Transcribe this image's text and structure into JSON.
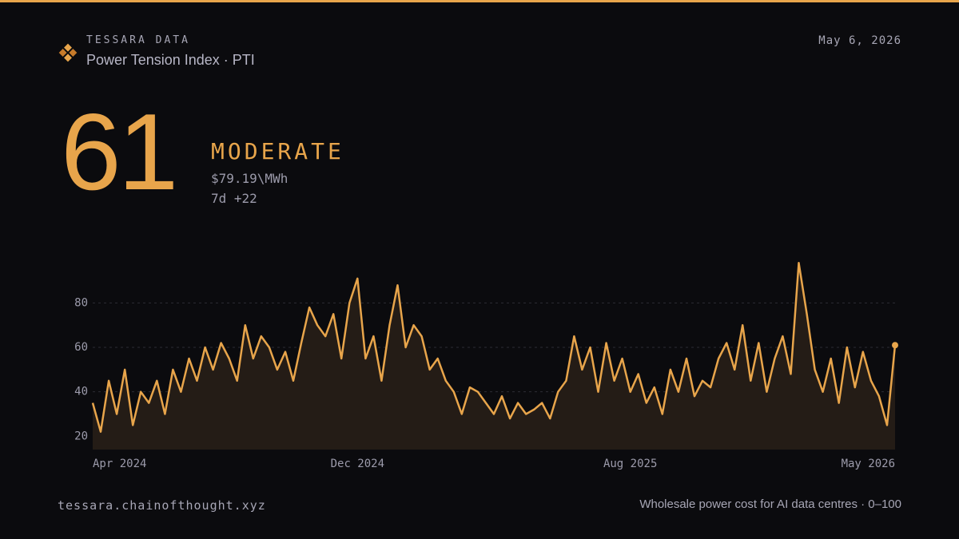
{
  "header": {
    "brand": "TESSARA DATA",
    "title": "Power Tension Index · PTI",
    "date": "May 6, 2026"
  },
  "headline": {
    "value": 61,
    "status": "MODERATE",
    "price": "$79.19\\MWh",
    "change": "7d +22"
  },
  "chart_data": {
    "type": "line",
    "color": "#e8a54b",
    "grid": true,
    "ylim": [
      14,
      101
    ],
    "yticks": [
      20,
      40,
      60,
      80
    ],
    "categories": [
      "Apr 2024",
      null,
      null,
      null,
      null,
      null,
      null,
      null,
      null,
      null,
      null,
      null,
      null,
      null,
      null,
      null,
      null,
      null,
      null,
      null,
      null,
      null,
      null,
      null,
      null,
      null,
      null,
      null,
      null,
      null,
      null,
      null,
      null,
      "Dec 2024",
      null,
      null,
      null,
      null,
      null,
      null,
      null,
      null,
      null,
      null,
      null,
      null,
      null,
      null,
      null,
      null,
      null,
      null,
      null,
      null,
      null,
      null,
      null,
      null,
      null,
      null,
      null,
      null,
      null,
      null,
      null,
      null,
      null,
      "Aug 2025",
      null,
      null,
      null,
      null,
      null,
      null,
      null,
      null,
      null,
      null,
      null,
      null,
      null,
      null,
      null,
      null,
      null,
      null,
      null,
      null,
      null,
      null,
      null,
      null,
      null,
      null,
      null,
      null,
      null,
      null,
      null,
      null,
      "May 2026"
    ],
    "values": [
      35,
      22,
      45,
      30,
      50,
      25,
      40,
      35,
      45,
      30,
      50,
      40,
      55,
      45,
      60,
      50,
      62,
      55,
      45,
      70,
      55,
      65,
      60,
      50,
      58,
      45,
      62,
      78,
      70,
      65,
      75,
      55,
      80,
      91,
      55,
      65,
      45,
      70,
      88,
      60,
      70,
      65,
      50,
      55,
      45,
      40,
      30,
      42,
      40,
      35,
      30,
      38,
      28,
      35,
      30,
      32,
      35,
      28,
      40,
      45,
      65,
      50,
      60,
      40,
      62,
      45,
      55,
      40,
      48,
      35,
      42,
      30,
      50,
      40,
      55,
      38,
      45,
      42,
      55,
      62,
      50,
      70,
      45,
      62,
      40,
      55,
      65,
      48,
      98,
      75,
      50,
      40,
      55,
      35,
      60,
      42,
      58,
      45,
      38,
      25,
      61
    ]
  },
  "footer": {
    "site": "tessara.chainofthought.xyz",
    "note": "Wholesale power cost for AI data centres · 0–100"
  }
}
